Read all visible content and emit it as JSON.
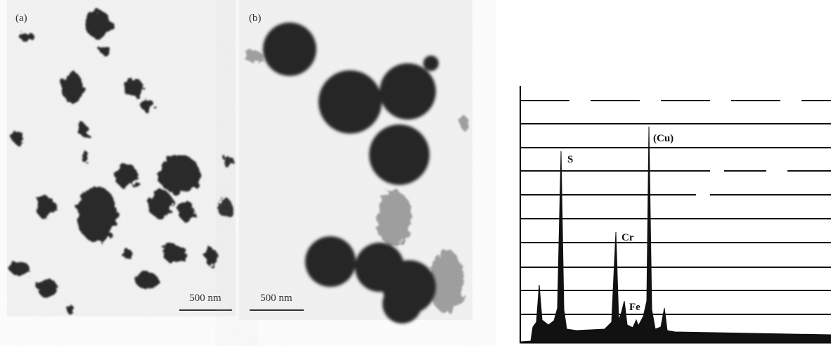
{
  "micrographs": [
    {
      "label": "(a)",
      "scale_bar": "500 nm"
    },
    {
      "label": "(b)",
      "scale_bar": "500 nm"
    }
  ],
  "spectrum": {
    "peak_labels": [
      "S",
      "(Cu)",
      "Cr",
      "Fe"
    ]
  }
}
